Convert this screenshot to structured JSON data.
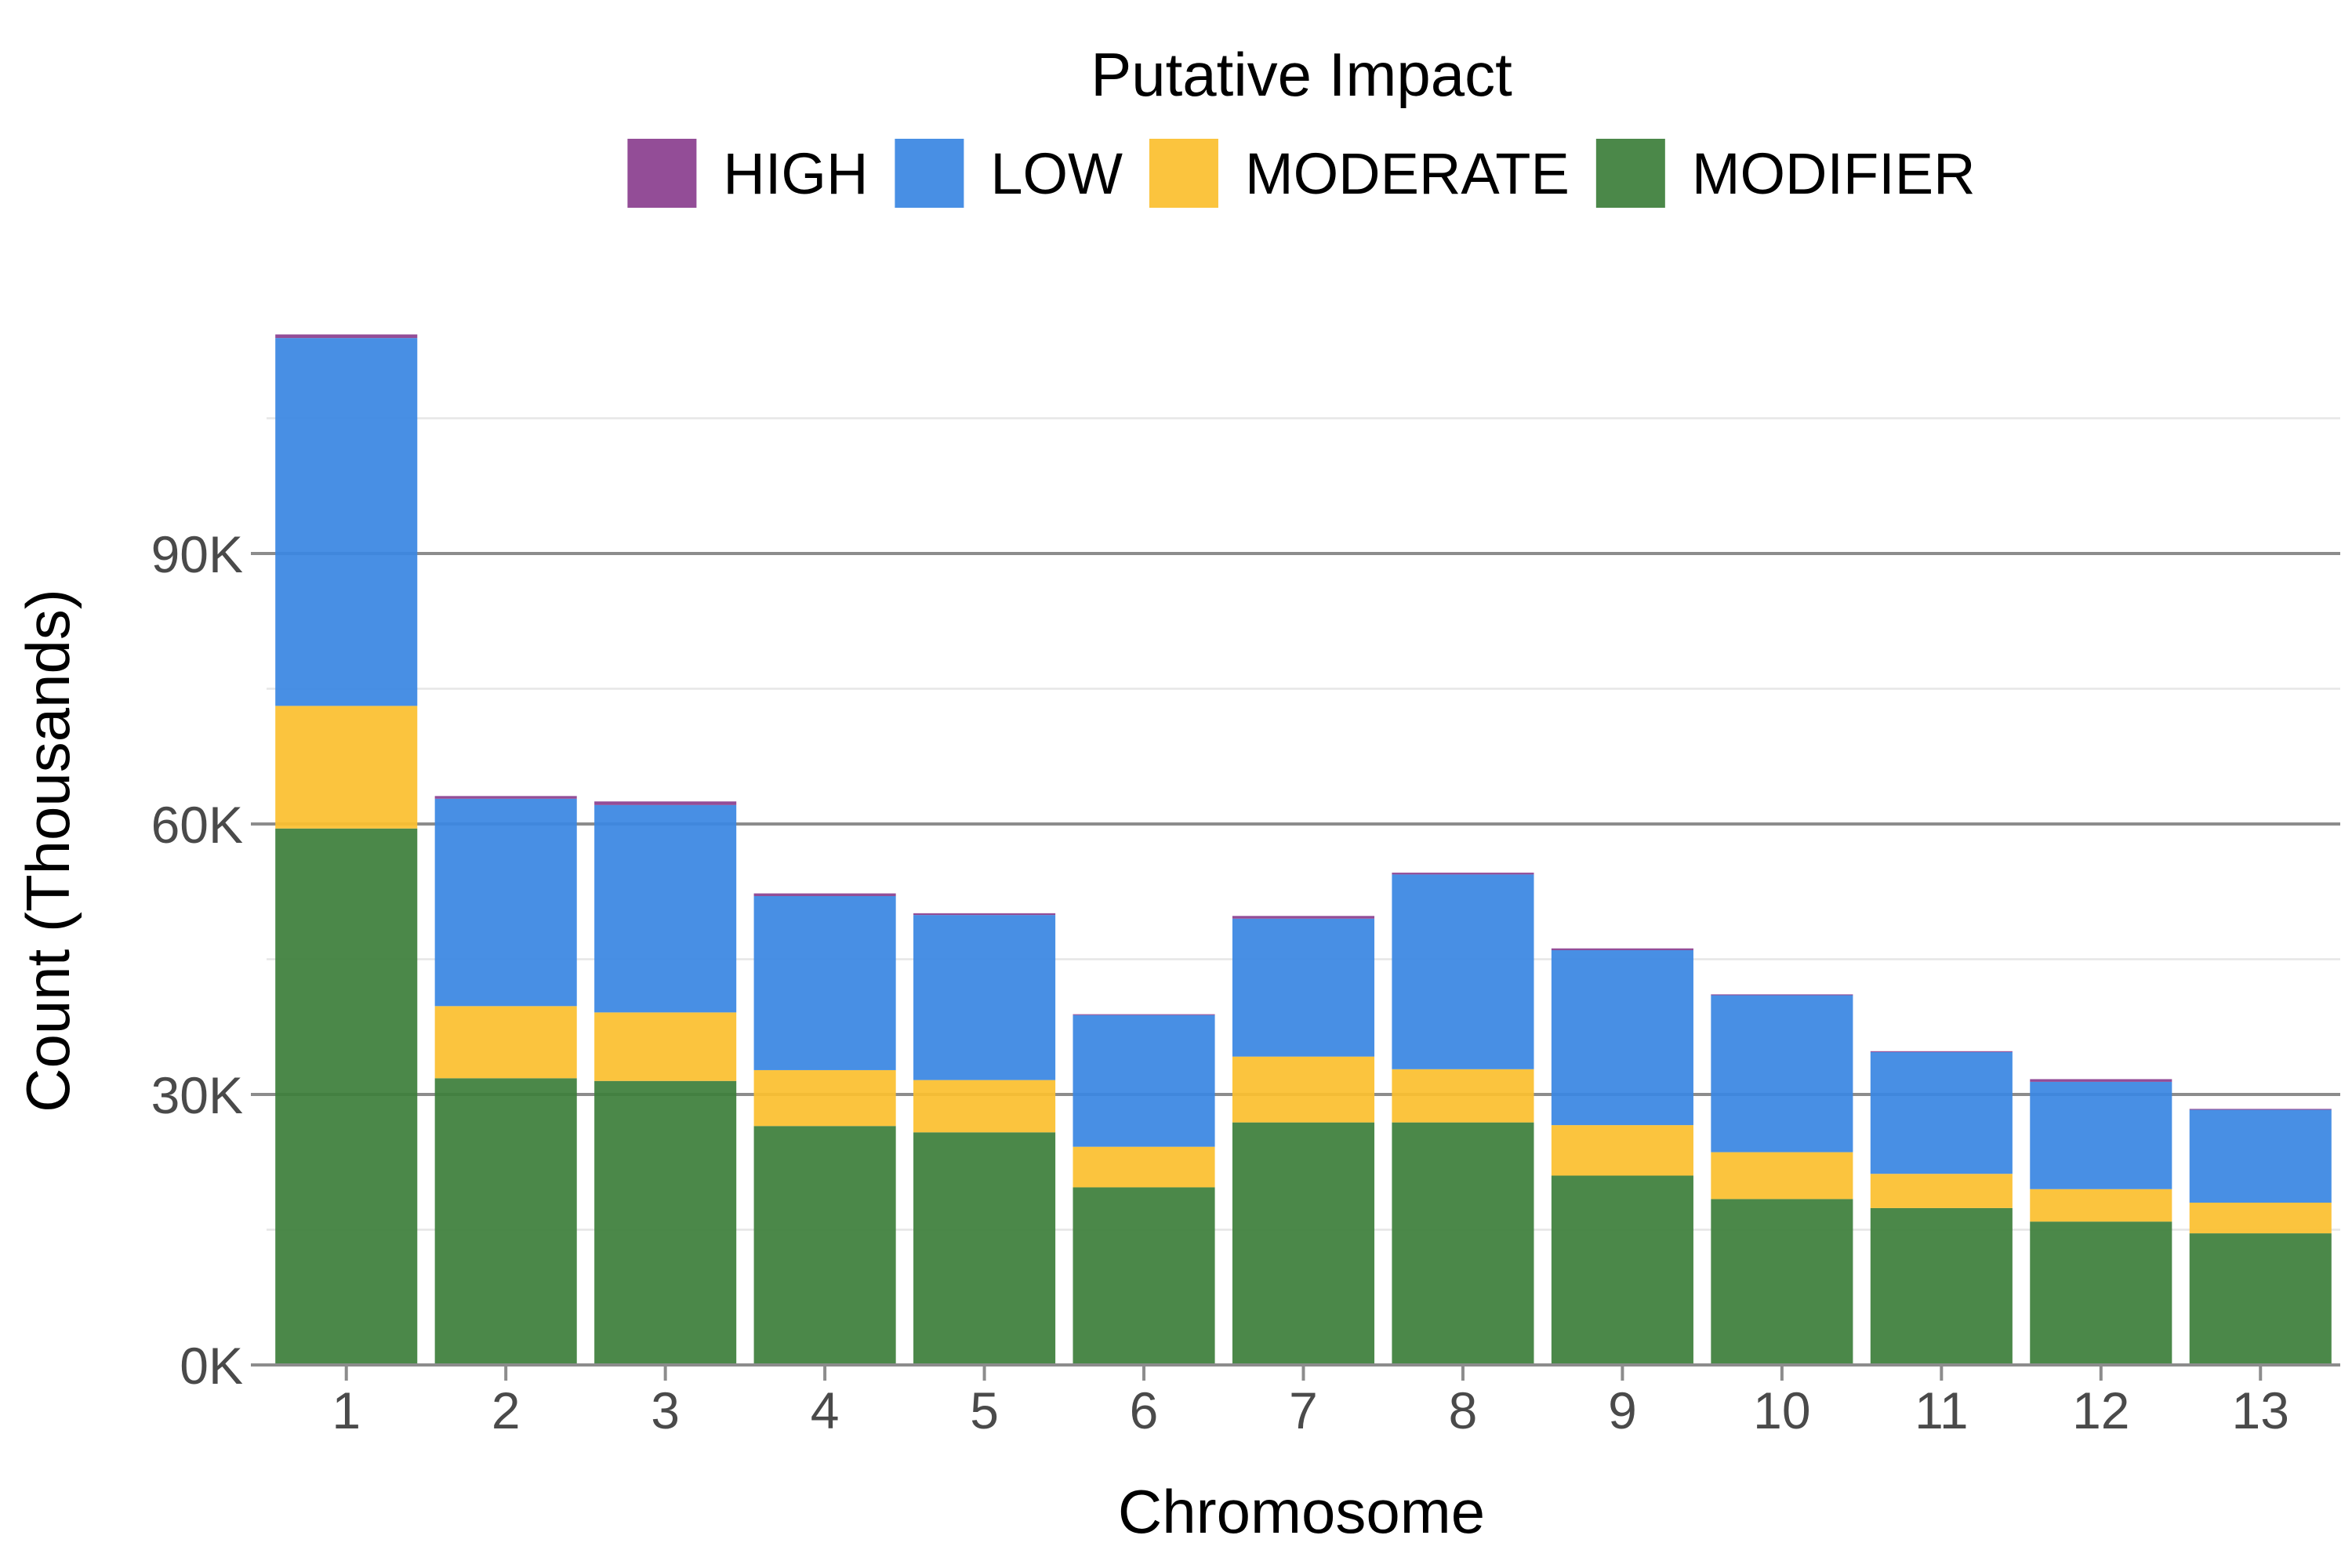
{
  "chart_data": {
    "type": "bar",
    "stacked": true,
    "xlabel": "Chromosome",
    "ylabel": "Count (Thousands)",
    "categories": [
      "1",
      "2",
      "3",
      "4",
      "5",
      "6",
      "7",
      "8",
      "9",
      "10",
      "11",
      "12",
      "13"
    ],
    "ylim": [
      0,
      120000
    ],
    "yticks": [
      0,
      30000,
      60000,
      90000
    ],
    "ytick_labels": [
      "0K",
      "30K",
      "60K",
      "90K"
    ],
    "minor_gridlines": [
      15000,
      45000,
      75000,
      105000
    ],
    "legend": {
      "title": "Putative Impact",
      "position": "top",
      "entries": [
        "HIGH",
        "LOW",
        "MODERATE",
        "MODIFIER"
      ]
    },
    "series": [
      {
        "name": "MODIFIER",
        "color": "#3d7f3b",
        "values": [
          59500,
          31800,
          31500,
          26500,
          25800,
          19700,
          26900,
          26900,
          21000,
          18400,
          17400,
          15900,
          14600
        ]
      },
      {
        "name": "MODERATE",
        "color": "#fbbf2f",
        "values": [
          13600,
          8000,
          7600,
          6200,
          5800,
          4500,
          7300,
          5900,
          5600,
          5200,
          3800,
          3600,
          3400
        ]
      },
      {
        "name": "LOW",
        "color": "#3a86e2",
        "values": [
          40800,
          23000,
          23000,
          19300,
          18300,
          14600,
          15300,
          21600,
          19400,
          17400,
          13500,
          11900,
          10300
        ]
      },
      {
        "name": "HIGH",
        "color": "#8b3f8f",
        "values": [
          400,
          300,
          400,
          300,
          200,
          100,
          300,
          200,
          200,
          100,
          100,
          300,
          100
        ]
      }
    ]
  }
}
